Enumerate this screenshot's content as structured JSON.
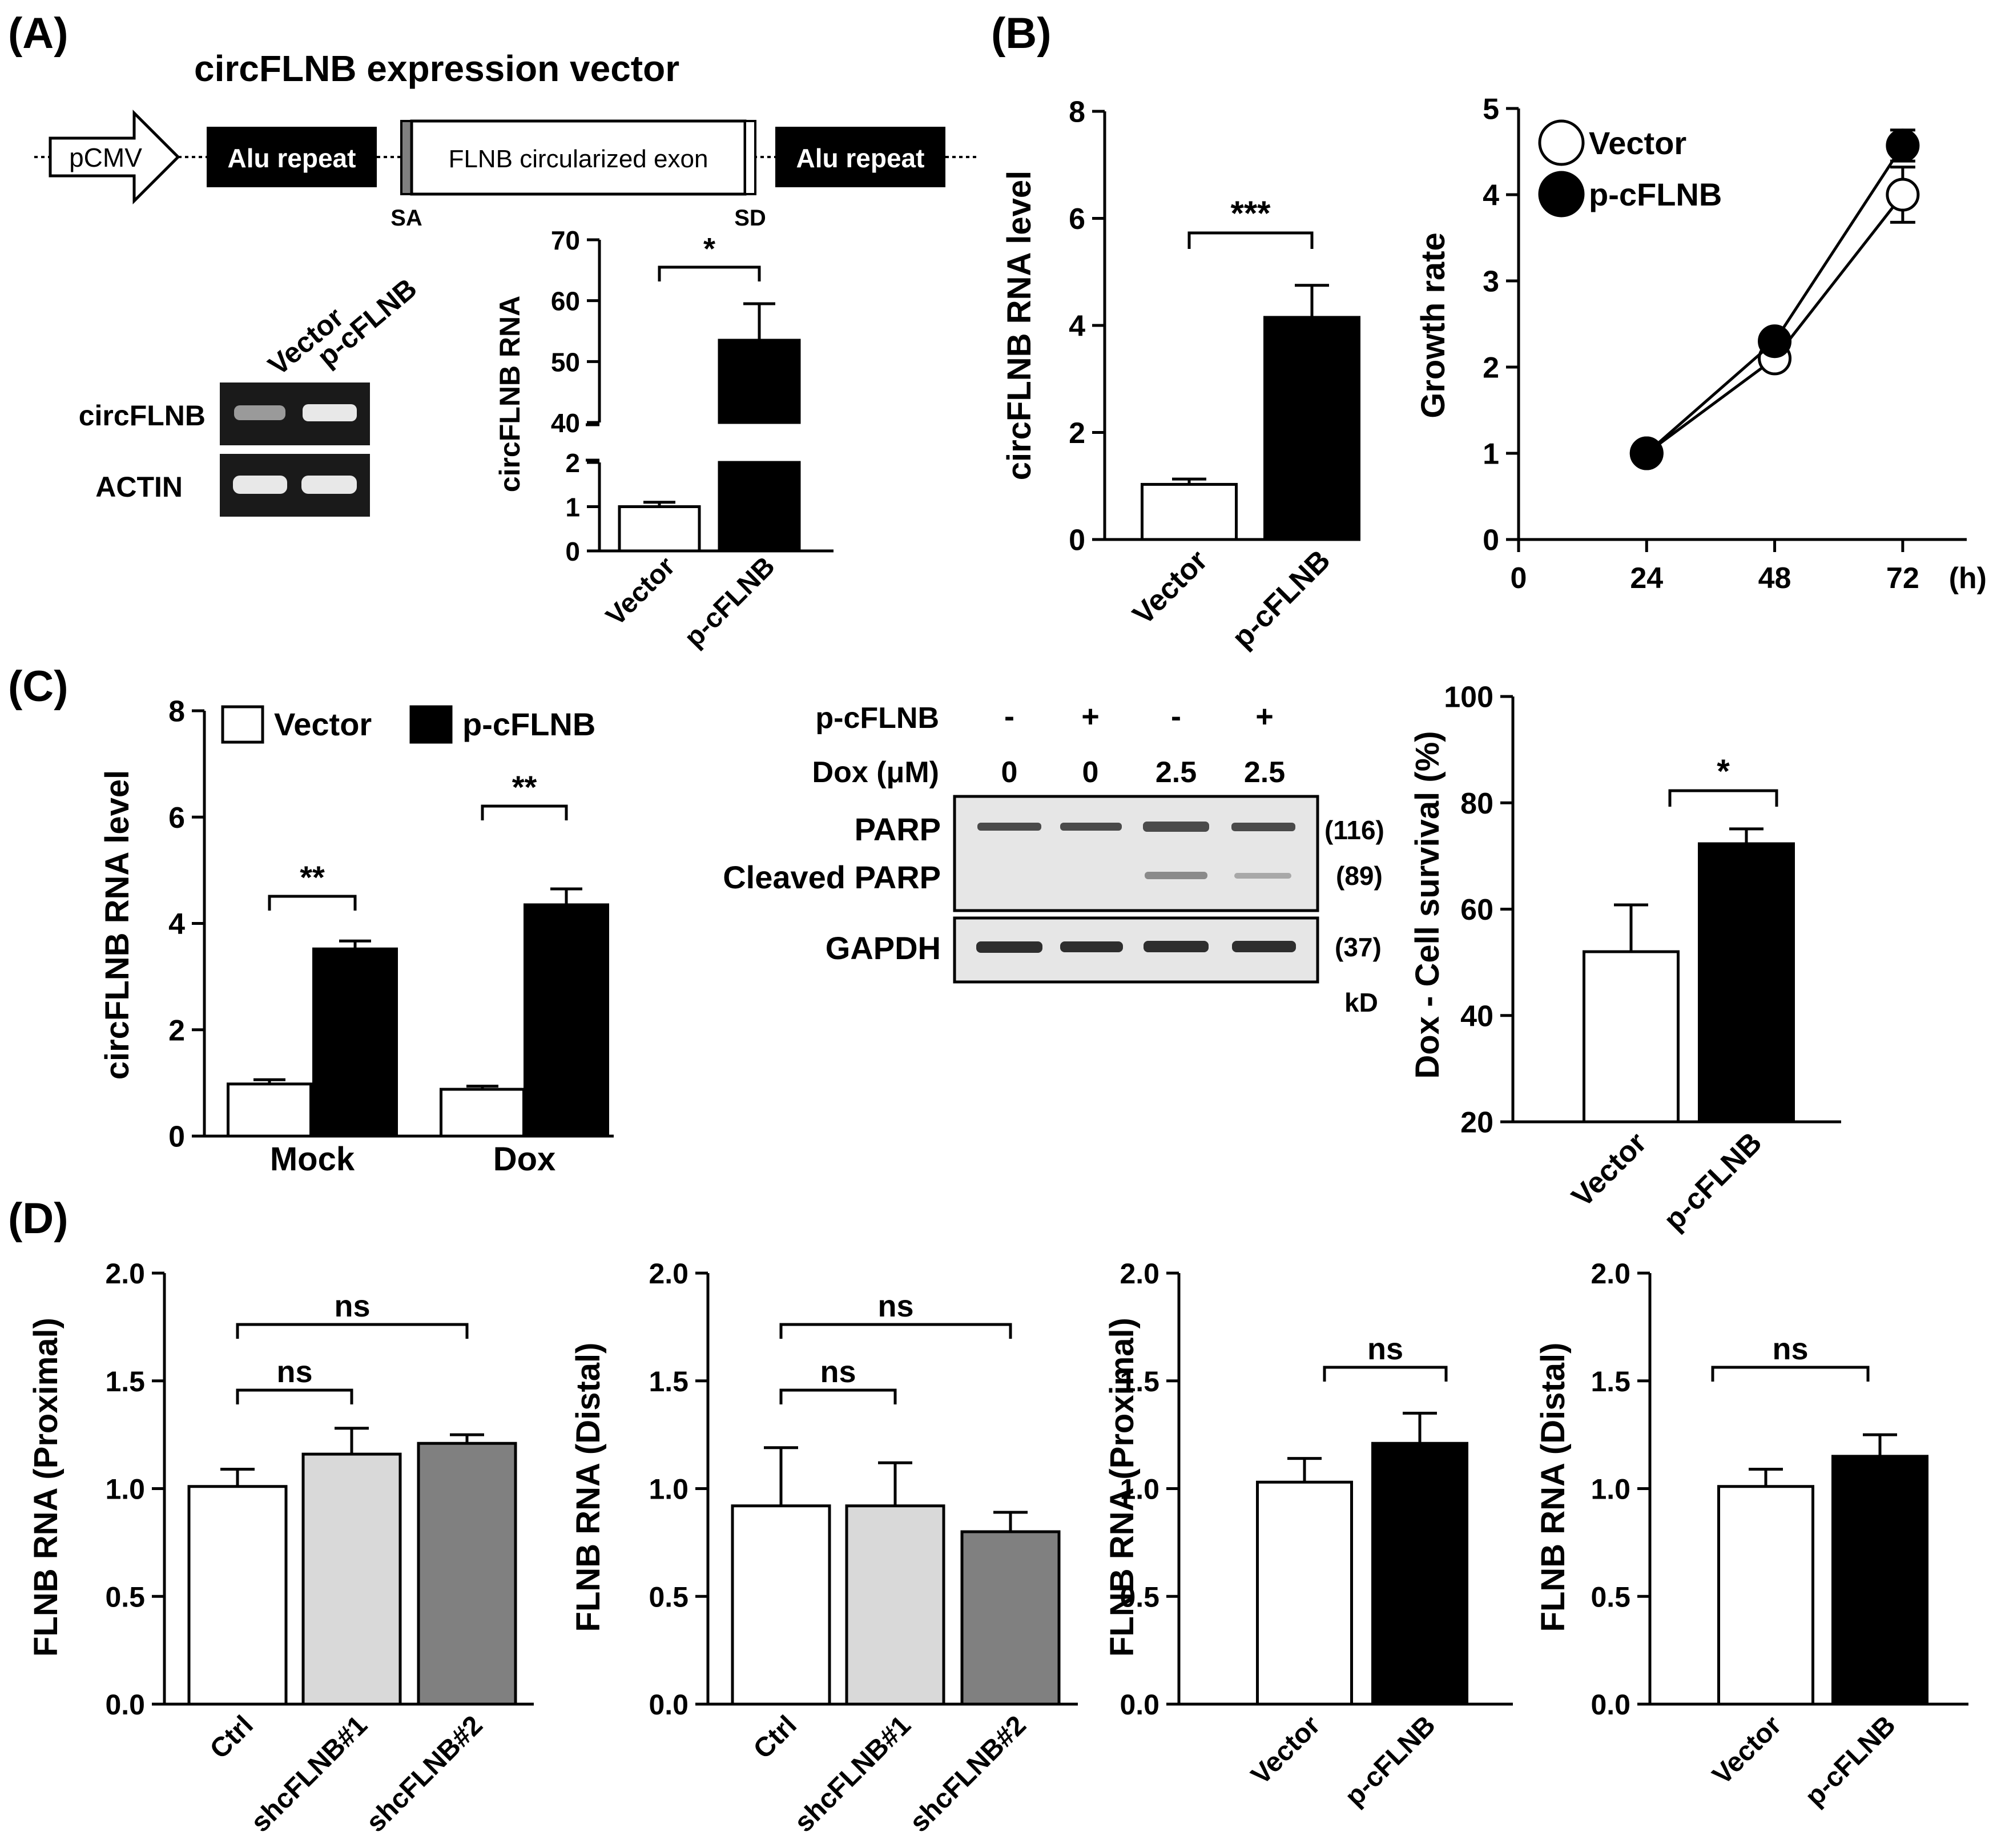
{
  "panels": {
    "a": "(A)",
    "b": "(B)",
    "c": "(C)",
    "d": "(D)"
  },
  "construct": {
    "title": "circFLNB expression vector",
    "promoter": "pCMV",
    "alu_left": "Alu repeat",
    "exon": "FLNB circularized exon",
    "alu_right": "Alu repeat",
    "sa": "SA",
    "sd": "SD"
  },
  "gel_a": {
    "lanes": [
      "Vector",
      "p-cFLNB"
    ],
    "rows": [
      "circFLNB",
      "ACTIN"
    ]
  },
  "western_c": {
    "cond_labels": [
      "p-cFLNB",
      "Dox (μM)"
    ],
    "pcflnb": [
      "-",
      "+",
      "-",
      "+"
    ],
    "dox": [
      "0",
      "0",
      "2.5",
      "2.5"
    ],
    "bands": [
      "PARP",
      "Cleaved PARP",
      "GAPDH"
    ],
    "sizes": [
      "(116)",
      "(89)",
      "(37)"
    ],
    "unit": "kD"
  },
  "chart_data": [
    {
      "id": "A-bar",
      "type": "bar",
      "ylabel": "circFLNB RNA",
      "categories": [
        "Vector",
        "p-cFLNB"
      ],
      "values": [
        1.0,
        53.5
      ],
      "errors": [
        0.1,
        6.0
      ],
      "ylim_low": [
        0,
        2
      ],
      "ylim_high": [
        40,
        70
      ],
      "yticks_low": [
        0,
        1,
        2
      ],
      "yticks_high": [
        40,
        50,
        60,
        70
      ],
      "significance": [
        "*"
      ]
    },
    {
      "id": "B-bar",
      "type": "bar",
      "ylabel": "circFLNB RNA level",
      "categories": [
        "Vector",
        "p-cFLNB"
      ],
      "values": [
        1.03,
        4.15
      ],
      "errors": [
        0.1,
        0.6
      ],
      "ylim": [
        0,
        8
      ],
      "yticks": [
        0,
        2,
        4,
        6,
        8
      ],
      "significance": [
        "***"
      ]
    },
    {
      "id": "B-line",
      "type": "line",
      "ylabel": "Growth rate",
      "xunit": "(h)",
      "x": [
        24,
        48,
        72
      ],
      "xticks": [
        0,
        24,
        48,
        72
      ],
      "xlim": [
        0,
        84
      ],
      "ylim": [
        0,
        5
      ],
      "yticks": [
        0,
        1,
        2,
        3,
        4,
        5
      ],
      "series": [
        {
          "name": "Vector",
          "values": [
            1.0,
            2.1,
            4.0
          ],
          "errors": [
            0.04,
            0.05,
            0.32
          ]
        },
        {
          "name": "p-cFLNB",
          "values": [
            1.0,
            2.3,
            4.57
          ],
          "errors": [
            0.04,
            0.05,
            0.18
          ]
        }
      ]
    },
    {
      "id": "C-bar",
      "type": "bar",
      "ylabel": "circFLNB RNA level",
      "categories": [
        "Mock",
        "Dox"
      ],
      "ylim": [
        0,
        8
      ],
      "yticks": [
        0,
        2,
        4,
        6,
        8
      ],
      "series": [
        {
          "name": "Vector",
          "values": [
            0.98,
            0.88
          ],
          "errors": [
            0.08,
            0.06
          ]
        },
        {
          "name": "p-cFLNB",
          "values": [
            3.52,
            4.35
          ],
          "errors": [
            0.15,
            0.3
          ]
        }
      ],
      "significance": [
        "**",
        "**"
      ]
    },
    {
      "id": "C-survival",
      "type": "bar",
      "ylabel": "Dox - Cell survival (%)",
      "categories": [
        "Vector",
        "p-cFLNB"
      ],
      "values": [
        52,
        72.3
      ],
      "errors": [
        8.8,
        2.8
      ],
      "ylim": [
        20,
        100
      ],
      "yticks": [
        20,
        40,
        60,
        80,
        100
      ],
      "significance": [
        "*"
      ]
    },
    {
      "id": "D1",
      "type": "bar",
      "ylabel": "FLNB RNA (Proximal)",
      "categories": [
        "Ctrl",
        "shcFLNB#1",
        "shcFLNB#2"
      ],
      "values": [
        1.01,
        1.16,
        1.21
      ],
      "errors": [
        0.08,
        0.12,
        0.04
      ],
      "ylim": [
        0,
        2
      ],
      "yticks": [
        "0.0",
        "0.5",
        "1.0",
        "1.5",
        "2.0"
      ],
      "significance": [
        "ns",
        "ns"
      ]
    },
    {
      "id": "D2",
      "type": "bar",
      "ylabel": "FLNB RNA (Distal)",
      "categories": [
        "Ctrl",
        "shcFLNB#1",
        "shcFLNB#2"
      ],
      "values": [
        0.92,
        0.92,
        0.8
      ],
      "errors": [
        0.27,
        0.2,
        0.09
      ],
      "ylim": [
        0,
        2
      ],
      "yticks": [
        "0.0",
        "0.5",
        "1.0",
        "1.5",
        "2.0"
      ],
      "significance": [
        "ns",
        "ns"
      ]
    },
    {
      "id": "D3",
      "type": "bar",
      "ylabel": "FLNB RNA (Proximal)",
      "categories": [
        "Vector",
        "p-cFLNB"
      ],
      "values": [
        1.03,
        1.21
      ],
      "errors": [
        0.11,
        0.14
      ],
      "ylim": [
        0,
        2
      ],
      "yticks": [
        "0.0",
        "0.5",
        "1.0",
        "1.5",
        "2.0"
      ],
      "significance": [
        "ns"
      ]
    },
    {
      "id": "D4",
      "type": "bar",
      "ylabel": "FLNB RNA (Distal)",
      "categories": [
        "Vector",
        "p-cFLNB"
      ],
      "values": [
        1.01,
        1.15
      ],
      "errors": [
        0.08,
        0.1
      ],
      "ylim": [
        0,
        2
      ],
      "yticks": [
        "0.0",
        "0.5",
        "1.0",
        "1.5",
        "2.0"
      ],
      "significance": [
        "ns"
      ]
    }
  ]
}
